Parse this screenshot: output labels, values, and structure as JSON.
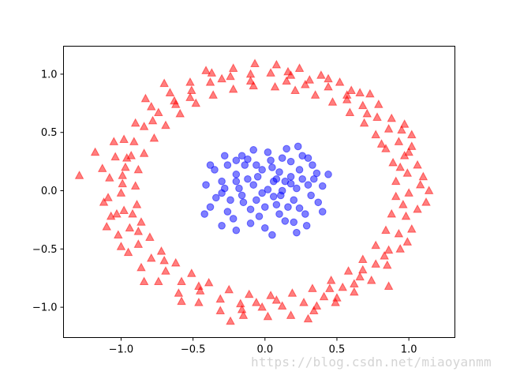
{
  "watermark": "https://blog.csdn.net/miaoyanmm",
  "chart_data": {
    "type": "scatter",
    "title": "",
    "xlabel": "",
    "ylabel": "",
    "xlim": [
      -1.4,
      1.32
    ],
    "ylim": [
      -1.26,
      1.24
    ],
    "xticks": [
      -1.0,
      -0.5,
      0.0,
      0.5,
      1.0
    ],
    "yticks": [
      -1.0,
      -0.5,
      0.0,
      0.5,
      1.0
    ],
    "xtick_labels": [
      "−1.0",
      "−0.5",
      "0.0",
      "0.5",
      "1.0"
    ],
    "ytick_labels": [
      "−1.0",
      "−0.5",
      "0.0",
      "0.5",
      "1.0"
    ],
    "grid": false,
    "series": [
      {
        "marker": "triangle",
        "color": "#ff0000",
        "alpha": 0.5,
        "points": [
          [
            1.0,
            -0.02
          ],
          [
            0.99,
            0.15
          ],
          [
            0.97,
            0.3
          ],
          [
            0.93,
            0.42
          ],
          [
            0.86,
            0.53
          ],
          [
            0.78,
            0.63
          ],
          [
            0.68,
            0.73
          ],
          [
            0.57,
            0.82
          ],
          [
            0.44,
            0.89
          ],
          [
            0.31,
            0.95
          ],
          [
            0.18,
            0.99
          ],
          [
            0.04,
            1.01
          ],
          [
            -0.1,
            1.0
          ],
          [
            -0.24,
            0.98
          ],
          [
            -0.38,
            0.93
          ],
          [
            -0.51,
            0.86
          ],
          [
            -0.63,
            0.77
          ],
          [
            -0.74,
            0.67
          ],
          [
            -0.84,
            0.55
          ],
          [
            -0.91,
            0.42
          ],
          [
            -0.96,
            0.28
          ],
          [
            -0.99,
            0.13
          ],
          [
            -1.0,
            -0.02
          ],
          [
            -0.98,
            -0.17
          ],
          [
            -0.94,
            -0.32
          ],
          [
            -0.88,
            -0.46
          ],
          [
            -0.79,
            -0.58
          ],
          [
            -0.69,
            -0.69
          ],
          [
            -0.58,
            -0.78
          ],
          [
            -0.45,
            -0.86
          ],
          [
            -0.31,
            -0.93
          ],
          [
            -0.17,
            -0.97
          ],
          [
            -0.02,
            -1.0
          ],
          [
            0.12,
            -0.99
          ],
          [
            0.27,
            -0.96
          ],
          [
            0.41,
            -0.91
          ],
          [
            0.54,
            -0.83
          ],
          [
            0.66,
            -0.74
          ],
          [
            0.77,
            -0.63
          ],
          [
            0.86,
            -0.51
          ],
          [
            0.93,
            -0.37
          ],
          [
            0.98,
            -0.22
          ],
          [
            1.08,
            0.05
          ],
          [
            1.06,
            0.22
          ],
          [
            1.02,
            0.38
          ],
          [
            0.95,
            0.52
          ],
          [
            0.88,
            0.62
          ],
          [
            0.79,
            0.74
          ],
          [
            0.66,
            0.84
          ],
          [
            0.52,
            0.93
          ],
          [
            0.39,
            0.99
          ],
          [
            0.24,
            1.05
          ],
          [
            0.08,
            1.08
          ],
          [
            -0.07,
            1.09
          ],
          [
            -0.22,
            1.05
          ],
          [
            -0.37,
            1.01
          ],
          [
            -0.52,
            0.93
          ],
          [
            -0.66,
            0.84
          ],
          [
            -0.79,
            0.72
          ],
          [
            -0.9,
            0.58
          ],
          [
            -0.98,
            0.44
          ],
          [
            -1.04,
            0.29
          ],
          [
            -1.08,
            0.11
          ],
          [
            -1.09,
            -0.06
          ],
          [
            -1.07,
            -0.22
          ],
          [
            -1.02,
            -0.38
          ],
          [
            -0.95,
            -0.53
          ],
          [
            -0.86,
            -0.66
          ],
          [
            -0.74,
            -0.78
          ],
          [
            -0.6,
            -0.88
          ],
          [
            -0.46,
            -0.96
          ],
          [
            -0.31,
            -1.03
          ],
          [
            -0.15,
            -1.07
          ],
          [
            0.02,
            -1.08
          ],
          [
            0.18,
            -1.07
          ],
          [
            0.34,
            -1.03
          ],
          [
            0.49,
            -0.96
          ],
          [
            0.62,
            -0.87
          ],
          [
            0.74,
            -0.77
          ],
          [
            0.85,
            -0.64
          ],
          [
            0.94,
            -0.5
          ],
          [
            1.02,
            -0.33
          ],
          [
            1.06,
            -0.16
          ],
          [
            0.91,
            0.08
          ],
          [
            0.89,
            0.24
          ],
          [
            0.84,
            0.36
          ],
          [
            0.77,
            0.48
          ],
          [
            0.69,
            0.58
          ],
          [
            0.59,
            0.67
          ],
          [
            0.47,
            0.76
          ],
          [
            0.35,
            0.82
          ],
          [
            0.21,
            0.86
          ],
          [
            0.07,
            0.89
          ],
          [
            -0.08,
            0.9
          ],
          [
            -0.22,
            0.87
          ],
          [
            -0.36,
            0.82
          ],
          [
            -0.48,
            0.75
          ],
          [
            -0.59,
            0.66
          ],
          [
            -0.69,
            0.56
          ],
          [
            -0.77,
            0.45
          ],
          [
            -0.84,
            0.32
          ],
          [
            -0.88,
            0.18
          ],
          [
            -0.9,
            0.04
          ],
          [
            -0.89,
            -0.12
          ],
          [
            -0.86,
            -0.27
          ],
          [
            -0.8,
            -0.4
          ],
          [
            -0.72,
            -0.52
          ],
          [
            -0.62,
            -0.62
          ],
          [
            -0.51,
            -0.71
          ],
          [
            -0.39,
            -0.79
          ],
          [
            -0.25,
            -0.85
          ],
          [
            -0.11,
            -0.89
          ],
          [
            0.04,
            -0.9
          ],
          [
            0.19,
            -0.88
          ],
          [
            0.33,
            -0.84
          ],
          [
            0.46,
            -0.77
          ],
          [
            0.58,
            -0.69
          ],
          [
            0.68,
            -0.59
          ],
          [
            0.77,
            -0.47
          ],
          [
            0.84,
            -0.34
          ],
          [
            0.88,
            -0.2
          ],
          [
            0.91,
            -0.05
          ],
          [
            1.14,
            0.0
          ],
          [
            1.12,
            -0.1
          ],
          [
            1.1,
            0.12
          ],
          [
            -1.29,
            0.13
          ],
          [
            -1.18,
            0.33
          ],
          [
            -1.13,
            0.19
          ],
          [
            -1.12,
            -0.1
          ],
          [
            -1.03,
            -0.2
          ],
          [
            -1.05,
            0.42
          ],
          [
            -0.83,
            0.79
          ],
          [
            -0.41,
            1.03
          ],
          [
            -0.7,
            0.92
          ],
          [
            0.44,
            0.96
          ],
          [
            0.73,
            0.83
          ],
          [
            0.97,
            0.57
          ],
          [
            1.02,
            0.48
          ],
          [
            0.99,
            -0.44
          ],
          [
            0.86,
            -0.82
          ],
          [
            0.3,
            -1.1
          ],
          [
            -0.58,
            -0.95
          ],
          [
            -0.84,
            -0.78
          ],
          [
            -1.1,
            -0.31
          ],
          [
            -1.0,
            -0.48
          ],
          [
            -0.24,
            -1.12
          ],
          [
            0.57,
            0.78
          ],
          [
            -0.1,
            0.94
          ],
          [
            0.15,
            0.94
          ],
          [
            0.62,
            -0.8
          ],
          [
            -0.7,
            -0.6
          ],
          [
            -0.97,
            0.2
          ],
          [
            0.81,
            0.4
          ],
          [
            -0.88,
            -0.35
          ],
          [
            0.5,
            -0.92
          ],
          [
            0.08,
            -0.94
          ],
          [
            -0.3,
            0.96
          ],
          [
            0.94,
            0.2
          ],
          [
            -0.52,
            0.8
          ],
          [
            0.36,
            -0.99
          ],
          [
            0.71,
            0.66
          ],
          [
            -0.93,
            0.3
          ],
          [
            0.96,
            -0.12
          ],
          [
            -0.16,
            -1.02
          ],
          [
            0.28,
            0.91
          ],
          [
            -0.62,
            0.74
          ],
          [
            0.68,
            -0.68
          ],
          [
            -0.46,
            -0.82
          ],
          [
            1.0,
            0.33
          ],
          [
            -0.99,
            0.06
          ],
          [
            0.45,
            -0.84
          ],
          [
            -0.78,
            0.6
          ],
          [
            0.83,
            -0.56
          ],
          [
            -0.06,
            -0.96
          ],
          [
            0.16,
            1.02
          ],
          [
            -0.92,
            -0.2
          ],
          [
            0.6,
            0.86
          ]
        ]
      },
      {
        "marker": "circle",
        "color": "#0000ff",
        "alpha": 0.5,
        "points": [
          [
            0.02,
            0.01
          ],
          [
            -0.08,
            0.05
          ],
          [
            0.11,
            -0.04
          ],
          [
            -0.15,
            -0.1
          ],
          [
            0.18,
            0.12
          ],
          [
            0.05,
            0.2
          ],
          [
            -0.2,
            0.14
          ],
          [
            0.24,
            -0.15
          ],
          [
            -0.04,
            -0.22
          ],
          [
            0.3,
            0.05
          ],
          [
            -0.3,
            -0.02
          ],
          [
            0.12,
            0.28
          ],
          [
            -0.12,
            0.27
          ],
          [
            0.2,
            -0.27
          ],
          [
            -0.22,
            -0.24
          ],
          [
            0.33,
            0.22
          ],
          [
            -0.35,
            0.18
          ],
          [
            0.37,
            -0.1
          ],
          [
            -0.38,
            -0.14
          ],
          [
            0.02,
            0.33
          ],
          [
            0.0,
            -0.32
          ],
          [
            0.26,
            0.3
          ],
          [
            -0.28,
            0.3
          ],
          [
            0.29,
            -0.3
          ],
          [
            -0.3,
            -0.3
          ],
          [
            0.4,
            0.04
          ],
          [
            -0.41,
            0.05
          ],
          [
            0.08,
            -0.12
          ],
          [
            -0.05,
            0.12
          ],
          [
            0.14,
            0.08
          ],
          [
            -0.18,
            0.02
          ],
          [
            0.06,
            -0.05
          ],
          [
            -0.1,
            -0.16
          ],
          [
            0.22,
            0.02
          ],
          [
            -0.24,
            -0.08
          ],
          [
            0.16,
            -0.14
          ],
          [
            -0.02,
            0.18
          ],
          [
            0.1,
            0.16
          ],
          [
            -0.14,
            0.22
          ],
          [
            0.28,
            -0.2
          ],
          [
            -0.3,
            0.08
          ],
          [
            0.34,
            0.1
          ],
          [
            -0.34,
            -0.06
          ],
          [
            0.18,
            0.25
          ],
          [
            -0.2,
            0.26
          ],
          [
            0.14,
            -0.26
          ],
          [
            -0.1,
            -0.28
          ],
          [
            0.04,
            0.26
          ],
          [
            0.24,
            0.18
          ],
          [
            -0.26,
            -0.18
          ],
          [
            0.32,
            -0.04
          ],
          [
            -0.06,
            -0.08
          ],
          [
            0.12,
            0.0
          ],
          [
            -0.2,
            0.08
          ],
          [
            0.08,
            0.1
          ],
          [
            -0.16,
            -0.04
          ],
          [
            0.2,
            -0.08
          ],
          [
            0.26,
            0.1
          ],
          [
            -0.12,
            0.1
          ],
          [
            0.0,
            -0.14
          ],
          [
            0.36,
            0.15
          ],
          [
            -0.42,
            -0.2
          ],
          [
            0.15,
            0.36
          ],
          [
            0.23,
            0.38
          ],
          [
            -0.08,
            0.35
          ],
          [
            0.05,
            -0.38
          ],
          [
            -0.2,
            -0.34
          ],
          [
            0.4,
            -0.18
          ],
          [
            -0.38,
            0.22
          ],
          [
            0.44,
            0.14
          ],
          [
            0.22,
            -0.36
          ],
          [
            -0.26,
            0.22
          ],
          [
            0.1,
            -0.2
          ],
          [
            -0.06,
            0.22
          ],
          [
            0.18,
            0.06
          ],
          [
            -0.28,
            0.02
          ],
          [
            0.3,
            0.28
          ],
          [
            -0.16,
            0.3
          ],
          [
            0.06,
            0.08
          ],
          [
            -0.02,
            -0.02
          ]
        ]
      }
    ]
  }
}
